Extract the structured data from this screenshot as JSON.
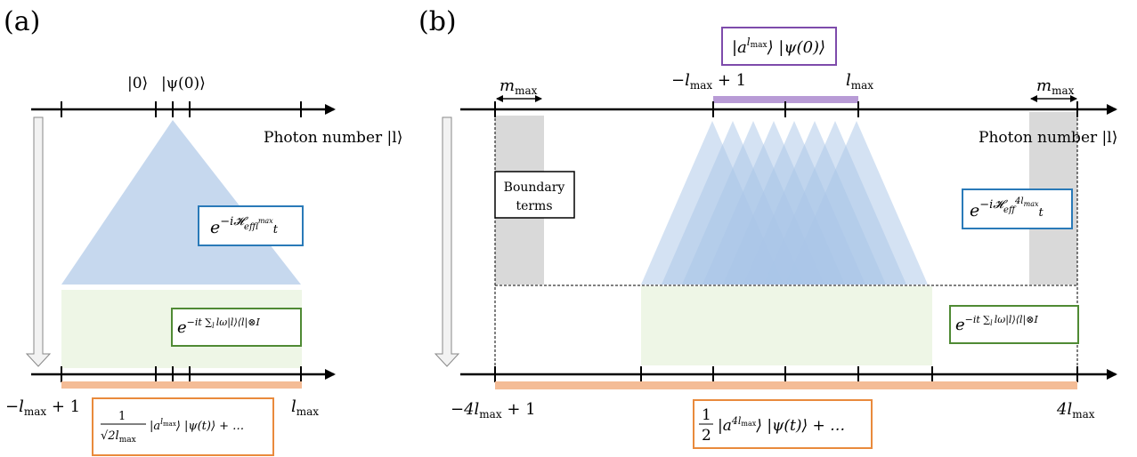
{
  "panel_a": {
    "label": "(a)",
    "top_kets": {
      "k0": "|0⟩",
      "kpsi": "|ψ(0)⟩"
    },
    "axis_label": {
      "word": "Photon number ",
      "ket": "|l⟩"
    },
    "evolution_box": {
      "base": "e",
      "exp": "−i𝓗",
      "sub": "eff",
      "supsup": "l",
      "supsub": "max",
      "t": "t"
    },
    "phase_box": {
      "base": "e",
      "exp": "−it ∑",
      "sub": "l",
      "rest": "lω|l⟩⟨l|⊗I"
    },
    "left_label": {
      "pre": "−l",
      "sub": "max",
      "post": " + 1"
    },
    "right_label": {
      "pre": "l",
      "sub": "max"
    },
    "bottom_box": {
      "num": "1",
      "den_pre": "√2l",
      "den_sub": "max",
      "ket_pre": "|a",
      "ket_sup": "l",
      "ket_supsub": "max",
      "ket_post": "⟩ |ψ(t)⟩ + …"
    },
    "colors": {
      "triangle": "#c6d8ee",
      "green": "#eef6e6",
      "orange": "#f4bc96",
      "blue_border": "#2a7ab8",
      "green_border": "#4f8a34",
      "orange_border": "#e98a3c"
    }
  },
  "panel_b": {
    "label": "(b)",
    "top_box": {
      "pre": "|a",
      "sup": "l",
      "supsub": "max",
      "post": "⟩ |ψ(0)⟩"
    },
    "tick_left": {
      "pre": "−l",
      "sub": "max",
      "post": " + 1"
    },
    "tick_right": {
      "pre": "l",
      "sub": "max"
    },
    "m_left": {
      "pre": "m",
      "sub": "max"
    },
    "m_right": {
      "pre": "m",
      "sub": "max"
    },
    "axis_label": {
      "word": "Photon number ",
      "ket": "|l⟩"
    },
    "boundary_box": {
      "line1": "Boundary",
      "line2": "terms"
    },
    "evolution_box": {
      "base": "e",
      "exp": "−i𝓗",
      "sub": "eff",
      "supsup": "4l",
      "supsub": "max",
      "t": "t"
    },
    "phase_box": {
      "base": "e",
      "exp": "−it ∑",
      "sub": "l",
      "rest": "lω|l⟩⟨l|⊗I"
    },
    "left_label": {
      "pre": "−4l",
      "sub": "max",
      "post": " + 1"
    },
    "right_label": {
      "pre": "4l",
      "sub": "max"
    },
    "bottom_box": {
      "num": "1",
      "den": "2",
      "ket_pre": "|a",
      "ket_sup": "4l",
      "ket_supsub": "max",
      "ket_post": "⟩ |ψ(t)⟩ + …"
    },
    "colors": {
      "purple": "#b89bd6",
      "purple_border": "#7e4bab",
      "gray": "#d9d9d9",
      "triangle": "#a9c6e8"
    }
  }
}
